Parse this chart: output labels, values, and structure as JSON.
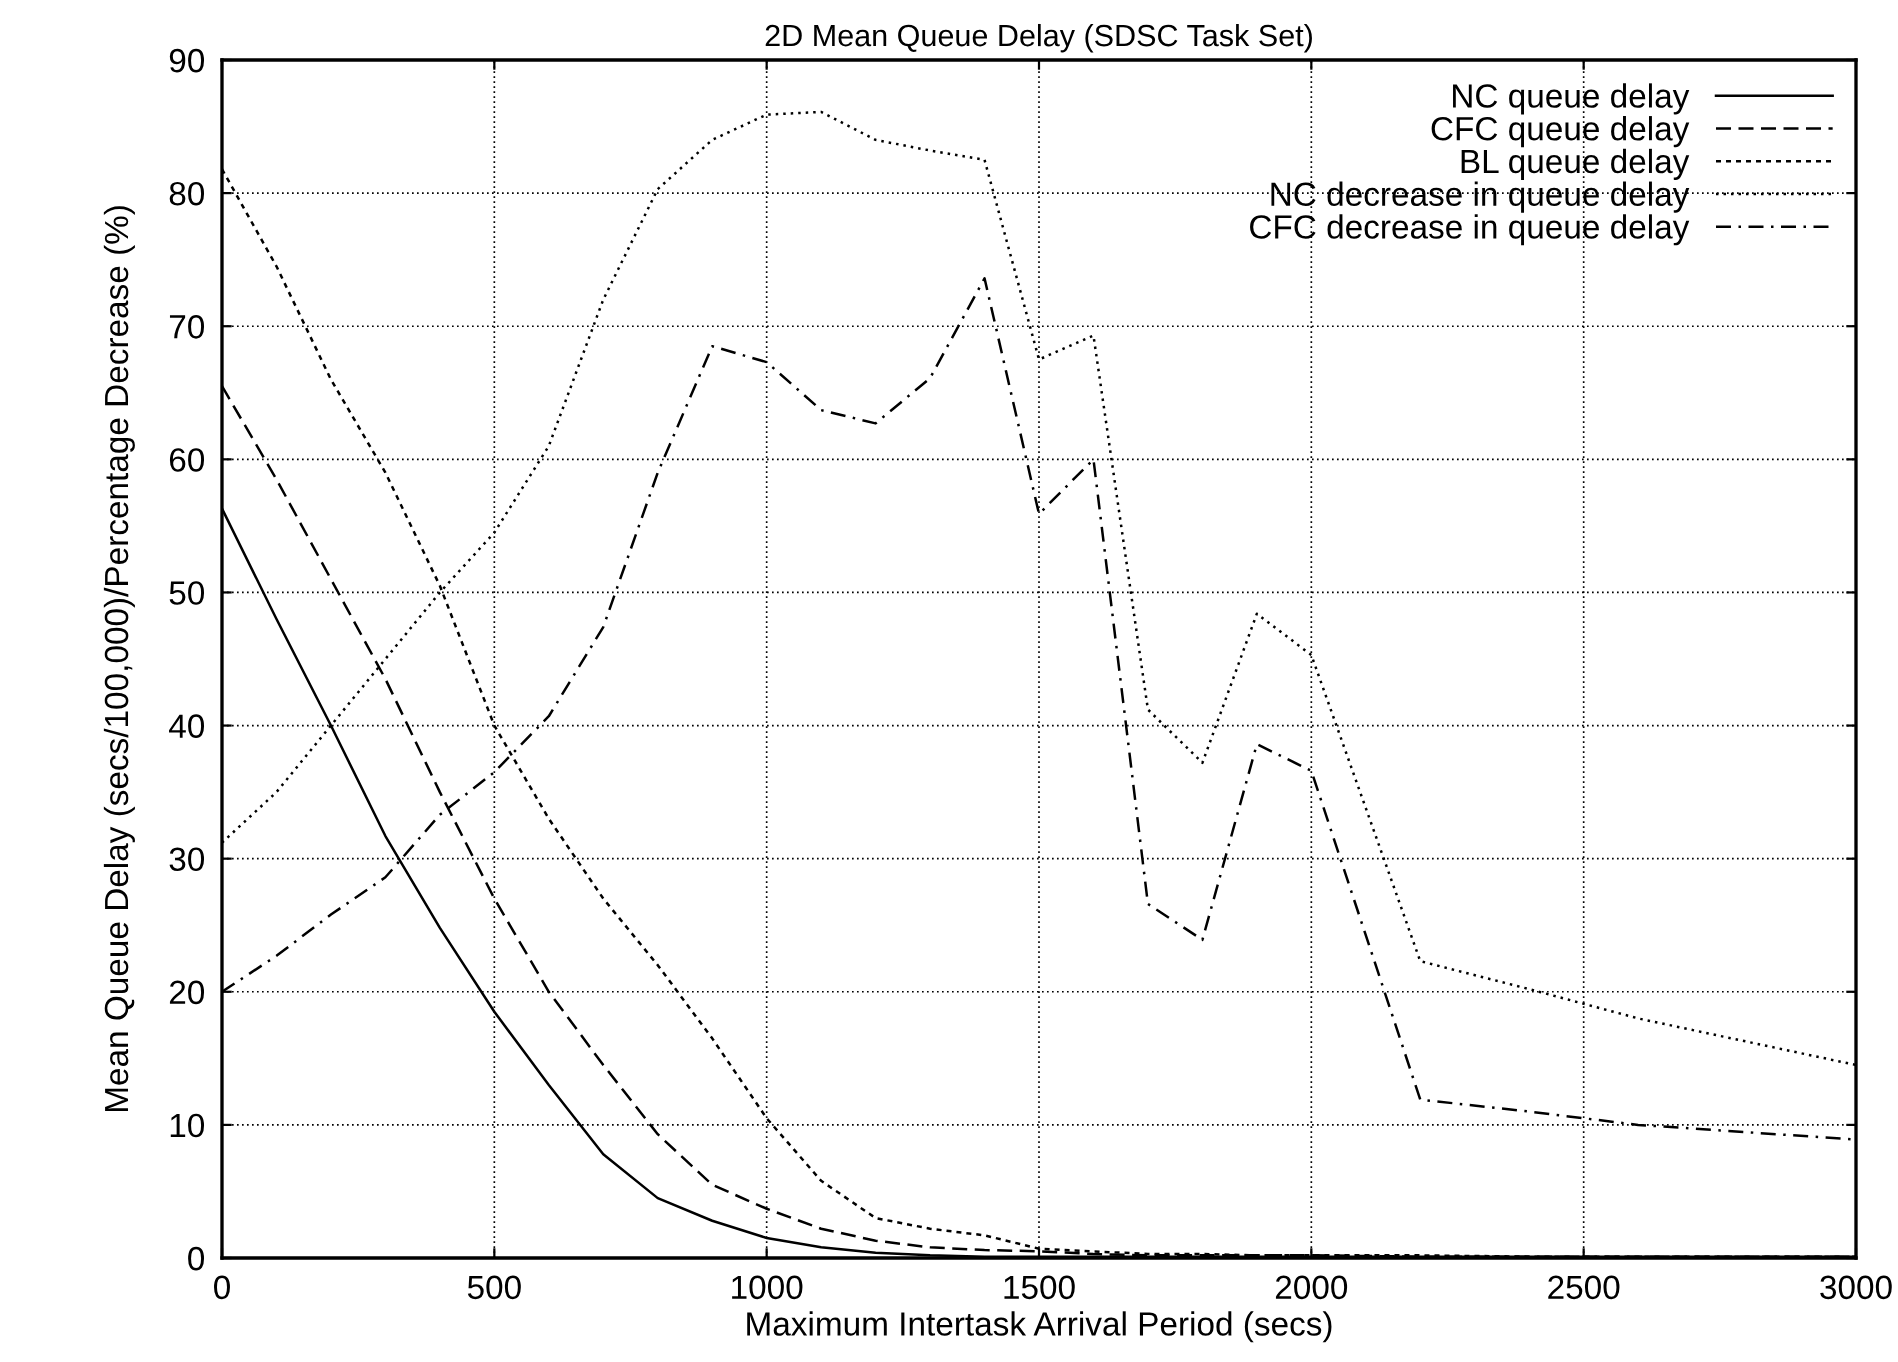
{
  "chart_data": {
    "type": "line",
    "title": "2D Mean Queue Delay (SDSC Task Set)",
    "xlabel": "Maximum Intertask Arrival Period (secs)",
    "ylabel": "Mean Queue Delay (secs/100,000)/Percentage Decrease (%)",
    "xlim": [
      0,
      3000
    ],
    "xticks": [
      0,
      500,
      1000,
      1500,
      2000,
      2500,
      3000
    ],
    "ylim": [
      0,
      90
    ],
    "yticks": [
      0,
      10,
      20,
      30,
      40,
      50,
      60,
      70,
      80,
      90
    ],
    "grid": true,
    "legend": "top right",
    "marker": "none",
    "series": [
      {
        "name": "NC queue delay",
        "color": "#000000",
        "line_style": "solid",
        "x": [
          0,
          100,
          200,
          300,
          400,
          500,
          600,
          700,
          800,
          900,
          1000,
          1100,
          1200,
          1300,
          1400,
          1500,
          1600,
          1700,
          1800,
          1900,
          2000,
          2200,
          2400,
          2600,
          3000
        ],
        "values": [
          56.3,
          48,
          40,
          31.7,
          24.8,
          18.5,
          13,
          7.8,
          4.5,
          2.8,
          1.5,
          0.8,
          0.4,
          0.2,
          0.1,
          0.1,
          0.1,
          0.1,
          0.1,
          0.1,
          0.1,
          0.1,
          0.1,
          0.1,
          0.1
        ]
      },
      {
        "name": "CFC queue delay",
        "color": "#000000",
        "line_style": "dashed",
        "x": [
          0,
          100,
          200,
          300,
          400,
          500,
          600,
          700,
          800,
          900,
          1000,
          1100,
          1200,
          1300,
          1400,
          1500,
          1600,
          1700,
          1800,
          1900,
          2000,
          2200,
          2400,
          2600,
          3000
        ],
        "values": [
          65.5,
          58.5,
          51,
          43.5,
          35,
          27,
          20,
          14.5,
          9.3,
          5.5,
          3.7,
          2.2,
          1.3,
          0.8,
          0.6,
          0.5,
          0.3,
          0.2,
          0.2,
          0.2,
          0.2,
          0.1,
          0.1,
          0.1,
          0.1
        ]
      },
      {
        "name": "BL queue delay",
        "color": "#000000",
        "line_style": "dotted",
        "x": [
          0,
          100,
          200,
          300,
          400,
          500,
          600,
          700,
          800,
          900,
          1000,
          1100,
          1200,
          1300,
          1400,
          1500,
          1600,
          1700,
          1800,
          1900,
          2000,
          2200,
          2400,
          2600,
          3000
        ],
        "values": [
          81.8,
          74.5,
          66,
          59,
          50.5,
          40,
          33,
          27,
          22,
          16.5,
          10.5,
          5.8,
          3,
          2.2,
          1.7,
          0.7,
          0.5,
          0.3,
          0.3,
          0.2,
          0.2,
          0.2,
          0.1,
          0.1,
          0.1
        ]
      },
      {
        "name": "NC decrease in queue delay",
        "color": "#000000",
        "line_style": "dotted",
        "x": [
          0,
          100,
          200,
          300,
          400,
          500,
          600,
          700,
          800,
          900,
          1000,
          1100,
          1200,
          1300,
          1400,
          1500,
          1600,
          1700,
          1800,
          1900,
          2000,
          2200,
          2400,
          2600,
          3000
        ],
        "values": [
          31.2,
          35,
          40,
          45,
          50,
          54.5,
          61,
          72,
          80.3,
          84,
          85.9,
          86.1,
          84,
          83.2,
          82.5,
          67.5,
          69.3,
          41.2,
          37.2,
          48.4,
          45.3,
          22.3,
          20.2,
          18,
          14.5
        ]
      },
      {
        "name": "CFC decrease in queue delay",
        "color": "#000000",
        "line_style": "dashdot",
        "x": [
          0,
          100,
          200,
          300,
          400,
          500,
          600,
          700,
          800,
          900,
          1000,
          1100,
          1200,
          1300,
          1400,
          1500,
          1600,
          1700,
          1800,
          1900,
          2000,
          2200,
          2400,
          2600,
          3000
        ],
        "values": [
          20,
          22.7,
          25.8,
          28.6,
          33.3,
          36.5,
          40.7,
          47.4,
          59,
          68.5,
          67.3,
          63.7,
          62.7,
          66.1,
          73.6,
          55.9,
          60,
          26.6,
          23.9,
          38.6,
          36.6,
          11.9,
          11,
          10,
          8.9
        ]
      }
    ]
  }
}
